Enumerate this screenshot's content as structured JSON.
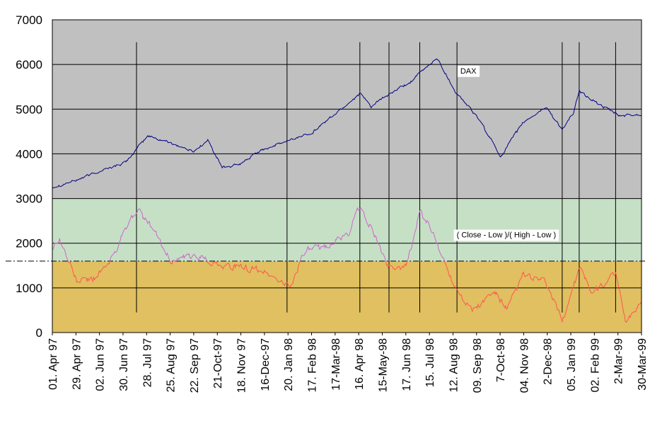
{
  "chart_data": {
    "type": "line",
    "title": "",
    "xlabel": "",
    "ylabel": "",
    "ylim": [
      0,
      7000
    ],
    "yticks": [
      0,
      1000,
      2000,
      3000,
      4000,
      5000,
      6000,
      7000
    ],
    "xlim": [
      "1997-04-01",
      "1999-03-30"
    ],
    "x_tick_labels": [
      "01. Apr 97",
      "29. Apr 97",
      "02. Jun 97",
      "30. Jun 97",
      "28. Jul 97",
      "25. Aug 97",
      "22. Sep 97",
      "21-Oct-97",
      "18. Nov 97",
      "16-Dec-97",
      "20. Jan 98",
      "17. Feb 98",
      "17-Mar-98",
      "16. Apr 98",
      "15-May-98",
      "17. Jun 98",
      "15. Jul 98",
      "12. Aug 98",
      "09. Sep 98",
      "7-Oct-98",
      "04. Nov 98",
      "2-Dec-98",
      "05. Jan 99",
      "02. Feb 99",
      "2-Mar-99",
      "30-Mar-99"
    ],
    "grid": "horizontal",
    "bands": [
      {
        "from": 0,
        "to": 1600,
        "color": "#E0C060"
      },
      {
        "from": 1600,
        "to": 3000,
        "color": "#C6E0C6"
      },
      {
        "from": 3000,
        "to": 7000,
        "color": "#C0C0C0"
      }
    ],
    "reference_line": {
      "y": 1600,
      "style": "dash-dot"
    },
    "marker_lines": [
      {
        "x": "1997-07-14",
        "y_top": 6500,
        "y_bottom": 450
      },
      {
        "x": "1998-01-16",
        "y_top": 6500,
        "y_bottom": 450
      },
      {
        "x": "1998-04-16",
        "y_top": 6500,
        "y_bottom": 450
      },
      {
        "x": "1998-05-22",
        "y_top": 6500,
        "y_bottom": 450
      },
      {
        "x": "1998-06-29",
        "y_top": 6500,
        "y_bottom": 450
      },
      {
        "x": "1998-08-14",
        "y_top": 6500,
        "y_bottom": 450
      },
      {
        "x": "1998-12-22",
        "y_top": 6500,
        "y_bottom": 450
      },
      {
        "x": "1999-01-12",
        "y_top": 6500,
        "y_bottom": 450
      },
      {
        "x": "1999-02-26",
        "y_top": 6500,
        "y_bottom": 450
      }
    ],
    "series": [
      {
        "name": "DAX",
        "color": "#000080",
        "noise": 55,
        "x": [
          "1997-04-01",
          "1997-04-29",
          "1997-06-02",
          "1997-06-30",
          "1997-07-14",
          "1997-07-28",
          "1997-08-25",
          "1997-09-22",
          "1997-10-10",
          "1997-10-28",
          "1997-11-18",
          "1997-12-16",
          "1998-01-20",
          "1998-02-17",
          "1998-03-17",
          "1998-04-16",
          "1998-04-30",
          "1998-05-15",
          "1998-06-17",
          "1998-07-20",
          "1998-08-12",
          "1998-09-09",
          "1998-10-07",
          "1998-11-04",
          "1998-12-02",
          "1998-12-22",
          "1999-01-05",
          "1999-01-12",
          "1999-02-02",
          "1999-03-02",
          "1999-03-30"
        ],
        "y": [
          3260,
          3400,
          3640,
          3800,
          4100,
          4400,
          4250,
          4050,
          4300,
          3700,
          3750,
          4100,
          4300,
          4500,
          4900,
          5350,
          5050,
          5250,
          5600,
          6150,
          5400,
          4800,
          3950,
          4700,
          5050,
          4550,
          4900,
          5400,
          5150,
          4850,
          4880
        ]
      },
      {
        "name": "( Close - Low )/( High - Low )",
        "color_high": "#CC66CC",
        "color_low": "#FF5555",
        "noise": 130,
        "x": [
          "1997-04-01",
          "1997-04-10",
          "1997-05-01",
          "1997-05-20",
          "1997-06-09",
          "1997-06-30",
          "1997-07-14",
          "1997-08-04",
          "1997-08-25",
          "1997-09-22",
          "1997-10-21",
          "1997-11-18",
          "1997-12-16",
          "1998-01-20",
          "1998-02-05",
          "1998-03-01",
          "1998-04-01",
          "1998-04-16",
          "1998-05-01",
          "1998-05-20",
          "1998-06-12",
          "1998-06-29",
          "1998-07-10",
          "1998-08-10",
          "1998-09-02",
          "1998-09-30",
          "1998-10-15",
          "1998-11-04",
          "1998-12-02",
          "1998-12-22",
          "1999-01-12",
          "1999-01-28",
          "1999-02-05",
          "1999-02-26",
          "1999-03-10",
          "1999-03-30"
        ],
        "y": [
          1900,
          2100,
          1150,
          1200,
          1500,
          2300,
          2750,
          2300,
          1600,
          1700,
          1550,
          1450,
          1400,
          1000,
          1800,
          1900,
          2200,
          2800,
          2300,
          1500,
          1450,
          2700,
          2400,
          1100,
          500,
          900,
          500,
          1300,
          1100,
          250,
          1450,
          900,
          1000,
          1300,
          250,
          700
        ]
      }
    ],
    "annotations": [
      {
        "text": "DAX",
        "x": "1998-08-28",
        "y": 5800
      },
      {
        "text": "( Close - Low )/( High - Low )",
        "x": "1998-10-14",
        "y": 2130
      }
    ]
  }
}
